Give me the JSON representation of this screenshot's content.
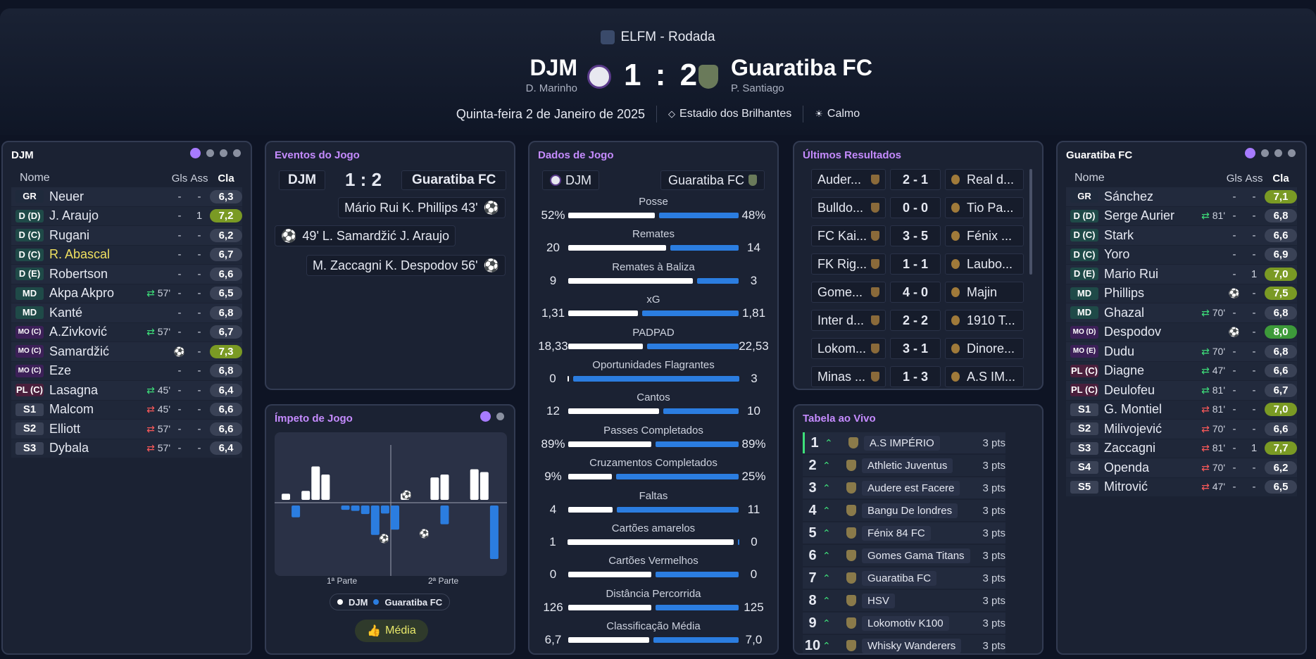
{
  "competition": "ELFM - Rodada",
  "match": {
    "home": "DJM",
    "away": "Guaratiba FC",
    "home_coach": "D. Marinho",
    "away_coach": "P. Santiago",
    "score": "1 : 2",
    "date": "Quinta-feira 2 de Janeiro de 2025",
    "stadium": "Estadio dos Brilhantes",
    "weather": "Calmo"
  },
  "colors": {
    "accent": "#c58bff",
    "home": "#ffffff",
    "away": "#2b7de0",
    "good": "#7a9a24"
  },
  "lineup_headers": {
    "name": "Nome",
    "gls": "Gls",
    "ass": "Ass",
    "cla": "Cla"
  },
  "home_lineup": {
    "title": "DJM",
    "players": [
      {
        "pos": "GR",
        "name": "Neuer",
        "ev": "",
        "gls": "-",
        "ass": "-",
        "rating": "6,3"
      },
      {
        "pos": "D (D)",
        "name": "J. Araujo",
        "ev": "",
        "gls": "-",
        "ass": "1",
        "rating": "7,2"
      },
      {
        "pos": "D (C)",
        "name": "Rugani",
        "ev": "",
        "gls": "-",
        "ass": "-",
        "rating": "6,2"
      },
      {
        "pos": "D (C)",
        "name": "R. Abascal",
        "ev": "",
        "gls": "-",
        "ass": "-",
        "rating": "6,7"
      },
      {
        "pos": "D (E)",
        "name": "Robertson",
        "ev": "",
        "gls": "-",
        "ass": "-",
        "rating": "6,6"
      },
      {
        "pos": "MD",
        "name": "Akpa Akpro",
        "ev": "57'",
        "gls": "-",
        "ass": "-",
        "rating": "6,5"
      },
      {
        "pos": "MD",
        "name": "Kanté",
        "ev": "",
        "gls": "-",
        "ass": "-",
        "rating": "6,8"
      },
      {
        "pos": "MO (C)",
        "name": "A.Zivković",
        "ev": "57'",
        "gls": "-",
        "ass": "-",
        "rating": "6,7"
      },
      {
        "pos": "MO (C)",
        "name": "Samardžić",
        "ev": "",
        "gls": "",
        "ass": "-",
        "rating": "7,3"
      },
      {
        "pos": "MO (C)",
        "name": "Eze",
        "ev": "",
        "gls": "-",
        "ass": "-",
        "rating": "6,8"
      },
      {
        "pos": "PL (C)",
        "name": "Lasagna",
        "ev": "45'",
        "gls": "-",
        "ass": "-",
        "rating": "6,4"
      },
      {
        "pos": "S1",
        "name": "Malcom",
        "ev": "45'",
        "gls": "-",
        "ass": "-",
        "rating": "6,6"
      },
      {
        "pos": "S2",
        "name": "Elliott",
        "ev": "57'",
        "gls": "-",
        "ass": "-",
        "rating": "6,6"
      },
      {
        "pos": "S3",
        "name": "Dybala",
        "ev": "57'",
        "gls": "-",
        "ass": "-",
        "rating": "6,4"
      }
    ]
  },
  "away_lineup": {
    "title": "Guaratiba FC",
    "players": [
      {
        "pos": "GR",
        "name": "Sánchez",
        "ev": "",
        "gls": "-",
        "ass": "-",
        "rating": "7,1"
      },
      {
        "pos": "D (D)",
        "name": "Serge Aurier",
        "ev": "81'",
        "gls": "-",
        "ass": "-",
        "rating": "6,8"
      },
      {
        "pos": "D (C)",
        "name": "Stark",
        "ev": "",
        "gls": "-",
        "ass": "-",
        "rating": "6,6"
      },
      {
        "pos": "D (C)",
        "name": "Yoro",
        "ev": "",
        "gls": "-",
        "ass": "-",
        "rating": "6,9"
      },
      {
        "pos": "D (E)",
        "name": "Mario Rui",
        "ev": "",
        "gls": "-",
        "ass": "1",
        "rating": "7,0"
      },
      {
        "pos": "MD",
        "name": "Phillips",
        "ev": "",
        "gls": "",
        "ass": "-",
        "rating": "7,5"
      },
      {
        "pos": "MD",
        "name": "Ghazal",
        "ev": "70'",
        "gls": "-",
        "ass": "-",
        "rating": "6,8"
      },
      {
        "pos": "MO (D)",
        "name": "Despodov",
        "ev": "",
        "gls": "",
        "ass": "-",
        "rating": "8,0"
      },
      {
        "pos": "MO (E)",
        "name": "Dudu",
        "ev": "70'",
        "gls": "-",
        "ass": "-",
        "rating": "6,8"
      },
      {
        "pos": "PL (C)",
        "name": "Diagne",
        "ev": "47'",
        "gls": "-",
        "ass": "-",
        "rating": "6,6"
      },
      {
        "pos": "PL (C)",
        "name": "Deulofeu",
        "ev": "81'",
        "gls": "-",
        "ass": "-",
        "rating": "6,7"
      },
      {
        "pos": "S1",
        "name": "G. Montiel",
        "ev": "81'",
        "gls": "-",
        "ass": "-",
        "rating": "7,0"
      },
      {
        "pos": "S2",
        "name": "Milivojević",
        "ev": "70'",
        "gls": "-",
        "ass": "-",
        "rating": "6,6"
      },
      {
        "pos": "S3",
        "name": "Zaccagni",
        "ev": "81'",
        "gls": "-",
        "ass": "1",
        "rating": "7,7"
      },
      {
        "pos": "S4",
        "name": "Openda",
        "ev": "70'",
        "gls": "-",
        "ass": "-",
        "rating": "6,2"
      },
      {
        "pos": "S5",
        "name": "Mitrović",
        "ev": "47'",
        "gls": "-",
        "ass": "-",
        "rating": "6,5"
      }
    ]
  },
  "events": {
    "title": "Eventos do Jogo",
    "home": "DJM",
    "score": "1 : 2",
    "away": "Guaratiba FC",
    "items": [
      {
        "text": "Mário Rui  K. Phillips 43'",
        "side": "away"
      },
      {
        "text": "49'  L. Samardžić  J. Araujo",
        "side": "home"
      },
      {
        "text": "M. Zaccagni  K. Despodov 56'",
        "side": "away"
      }
    ]
  },
  "momentum": {
    "title": "Ímpeto de Jogo",
    "half1": "1ª Parte",
    "half2": "2ª Parte",
    "legend_home": "DJM",
    "legend_away": "Guaratiba FC",
    "button": "Média",
    "home_bars": [
      0.15,
      0,
      0.22,
      0.82,
      0.62,
      0,
      0,
      0,
      0,
      0,
      0,
      0,
      0.16,
      0,
      0,
      0.55,
      0.62,
      0,
      0,
      0.75,
      0.68,
      0
    ],
    "away_bars": [
      0,
      0.22,
      0,
      0,
      0,
      0,
      0.08,
      0.1,
      0.16,
      0.55,
      0.15,
      0.45,
      0,
      0,
      0,
      0,
      0.35,
      0,
      0,
      0,
      0,
      1.0
    ]
  },
  "stats": {
    "title": "Dados de Jogo",
    "home": "DJM",
    "away": "Guaratiba FC",
    "rows": [
      {
        "label": "Posse",
        "h": "52%",
        "a": "48%",
        "hv": 52,
        "av": 48
      },
      {
        "label": "Remates",
        "h": "20",
        "a": "14",
        "hv": 20,
        "av": 14
      },
      {
        "label": "Remates à Baliza",
        "h": "9",
        "a": "3",
        "hv": 9,
        "av": 3
      },
      {
        "label": "xG",
        "h": "1,31",
        "a": "1,81",
        "hv": 1.31,
        "av": 1.81
      },
      {
        "label": "PADPAD",
        "h": "18,33",
        "a": "22,53",
        "hv": 18.33,
        "av": 22.53
      },
      {
        "label": "Oportunidades Flagrantes",
        "h": "0",
        "a": "3",
        "hv": 0,
        "av": 3
      },
      {
        "label": "Cantos",
        "h": "12",
        "a": "10",
        "hv": 12,
        "av": 10
      },
      {
        "label": "Passes Completados",
        "h": "89%",
        "a": "89%",
        "hv": 89,
        "av": 89
      },
      {
        "label": "Cruzamentos Completados",
        "h": "9%",
        "a": "25%",
        "hv": 9,
        "av": 25
      },
      {
        "label": "Faltas",
        "h": "4",
        "a": "11",
        "hv": 4,
        "av": 11
      },
      {
        "label": "Cartões amarelos",
        "h": "1",
        "a": "0",
        "hv": 1,
        "av": 0
      },
      {
        "label": "Cartões Vermelhos",
        "h": "0",
        "a": "0",
        "hv": 0,
        "av": 0
      },
      {
        "label": "Distância Percorrida",
        "h": "126",
        "a": "125",
        "hv": 126,
        "av": 125
      },
      {
        "label": "Classificação Média",
        "h": "6,7",
        "a": "7,0",
        "hv": 6.7,
        "av": 7.0
      }
    ]
  },
  "results": {
    "title": "Últimos Resultados",
    "rows": [
      {
        "h": "Auder...",
        "s": "2 - 1",
        "a": "Real d..."
      },
      {
        "h": "Bulldo...",
        "s": "0 - 0",
        "a": "Tio Pa..."
      },
      {
        "h": "FC Kai...",
        "s": "3 - 5",
        "a": "Fénix ..."
      },
      {
        "h": "FK Rig...",
        "s": "1 - 1",
        "a": "Laubo..."
      },
      {
        "h": "Gome...",
        "s": "4 - 0",
        "a": "Majin"
      },
      {
        "h": "Inter d...",
        "s": "2 - 2",
        "a": "1910 T..."
      },
      {
        "h": "Lokom...",
        "s": "3 - 1",
        "a": "Dinore..."
      },
      {
        "h": "Minas ...",
        "s": "1 - 3",
        "a": "A.S IM..."
      }
    ]
  },
  "league": {
    "title": "Tabela ao Vivo",
    "rows": [
      {
        "n": "1",
        "team": "A.S IMPÉRIO",
        "pts": "3 pts"
      },
      {
        "n": "2",
        "team": "Athletic Juventus",
        "pts": "3 pts"
      },
      {
        "n": "3",
        "team": "Audere est Facere",
        "pts": "3 pts"
      },
      {
        "n": "4",
        "team": "Bangu De londres",
        "pts": "3 pts"
      },
      {
        "n": "5",
        "team": "Fénix 84 FC",
        "pts": "3 pts"
      },
      {
        "n": "6",
        "team": "Gomes Gama Titans",
        "pts": "3 pts"
      },
      {
        "n": "7",
        "team": "Guaratiba FC",
        "pts": "3 pts"
      },
      {
        "n": "8",
        "team": "HSV",
        "pts": "3 pts"
      },
      {
        "n": "9",
        "team": "Lokomotiv K100",
        "pts": "3 pts"
      },
      {
        "n": "10",
        "team": "Whisky Wanderers",
        "pts": "3 pts"
      }
    ]
  }
}
